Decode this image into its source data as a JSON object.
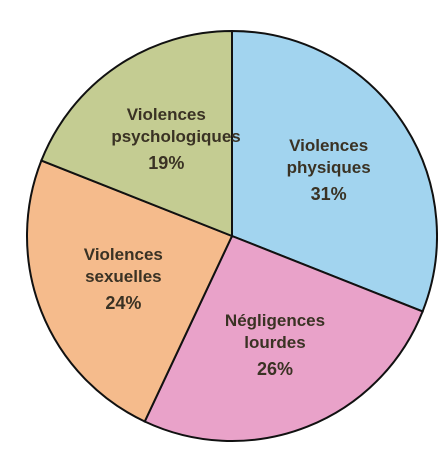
{
  "chart_data": {
    "type": "pie",
    "categories": [
      "Violences physiques",
      "Négligences lourdes",
      "Violences sexuelles",
      "Violences psychologiques"
    ],
    "values": [
      31,
      26,
      24,
      19
    ],
    "value_labels": [
      "31%",
      "26%",
      "24%",
      "19%"
    ],
    "colors": [
      "#a2d4ef",
      "#e9a2c9",
      "#f5bb8c",
      "#c4cc92"
    ]
  }
}
